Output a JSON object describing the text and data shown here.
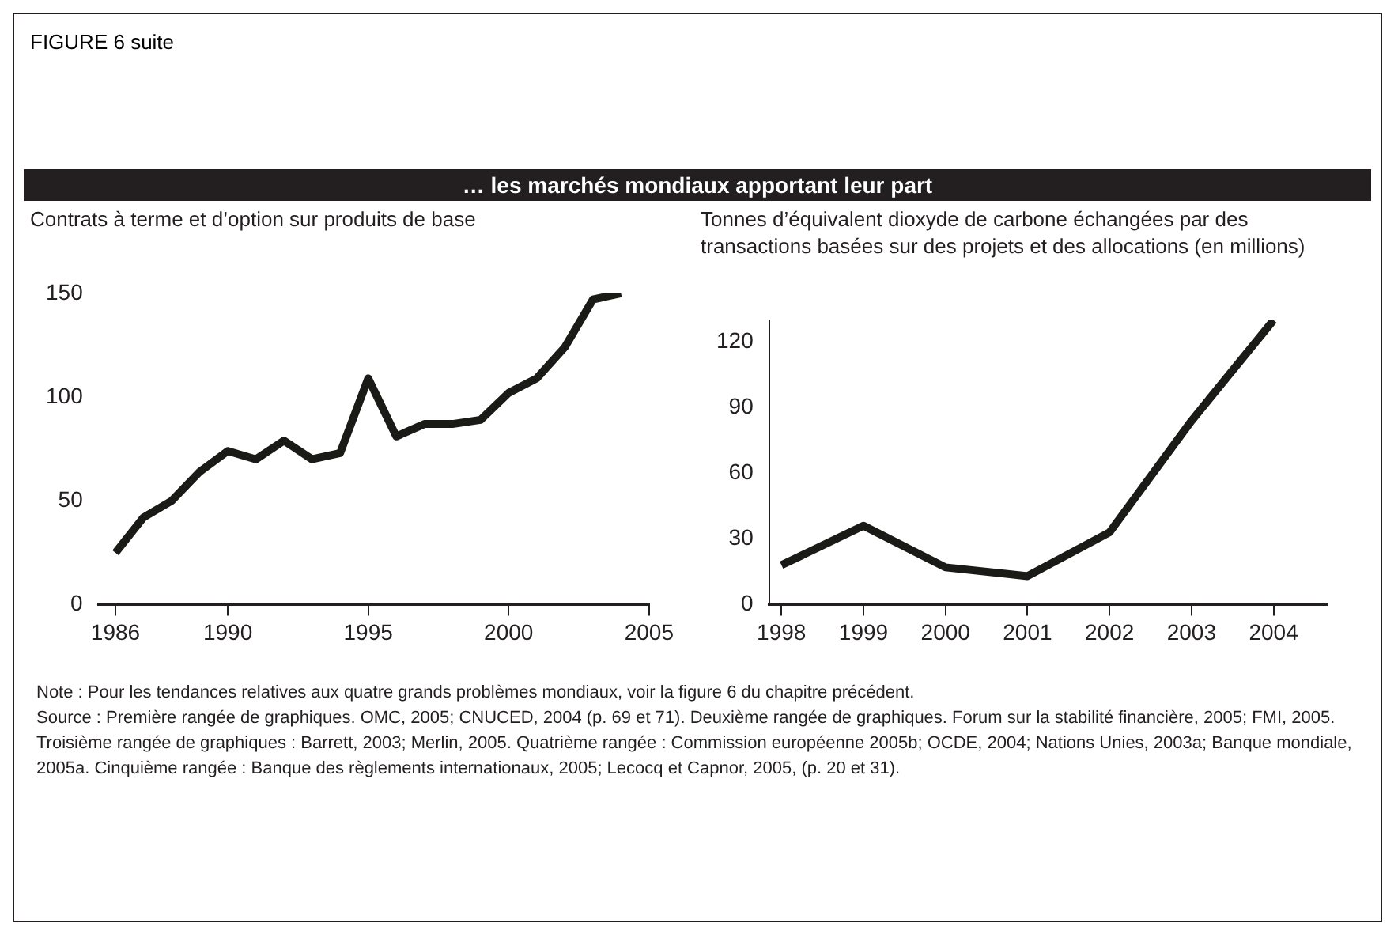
{
  "chart_data": [
    {
      "type": "other",
      "title": "FIGURE 6 suite",
      "subtitle": "… les marchés mondiaux apportant leur part"
    },
    {
      "type": "line",
      "title": "Contrats à terme et d’option sur produits de base",
      "x": [
        1986,
        1987,
        1988,
        1989,
        1990,
        1991,
        1992,
        1993,
        1994,
        1995,
        1996,
        1997,
        1998,
        1999,
        2000,
        2001,
        2002,
        2003,
        2004
      ],
      "series": [
        {
          "color": "#1a1a17",
          "values": [
            25,
            42,
            50,
            64,
            74,
            70,
            79,
            70,
            73,
            109,
            81,
            87,
            87,
            89,
            102,
            109,
            124,
            147,
            150
          ]
        }
      ],
      "xlim": [
        1985.4,
        2005
      ],
      "xticks": [
        1986,
        1990,
        1995,
        2000,
        2005
      ],
      "ylim": [
        0,
        150
      ],
      "yticks": [
        0,
        50,
        100,
        150
      ],
      "grid": false,
      "legend": false,
      "marker": "none",
      "line_style": "solid"
    },
    {
      "type": "line",
      "title": "Tonnes d’équivalent dioxyde de carbone échangées par des transactions basées sur des projets et des allocations (en millions)",
      "x": [
        1998,
        1999,
        2000,
        2001,
        2002,
        2003,
        2004
      ],
      "series": [
        {
          "color": "#1a1a17",
          "values": [
            18,
            36,
            17,
            13,
            33,
            84,
            130
          ]
        }
      ],
      "xlim": [
        1997.85,
        2004.65
      ],
      "xticks": [
        1998,
        1999,
        2000,
        2001,
        2002,
        2003,
        2004
      ],
      "ylim": [
        0,
        130
      ],
      "yticks": [
        0,
        30,
        60,
        90,
        120
      ],
      "grid": false,
      "legend": false,
      "marker": "none",
      "line_style": "solid"
    },
    {
      "type": "other",
      "annotations": [
        "Note : Pour les tendances relatives aux quatre grands problèmes mondiaux, voir la figure 6 du chapitre précédent.",
        "Source : Première rangée de graphiques. OMC, 2005; CNUCED, 2004 (p. 69 et 71). Deuxième rangée de graphiques. Forum sur la stabilité financière, 2005; FMI, 2005. Troisième rangée de graphiques : Barrett, 2003; Merlin, 2005. Quatrième rangée : Commission européenne 2005b; OCDE, 2004; Nations Unies, 2003a; Banque mondiale, 2005a. Cinquième rangée : Banque des règlements internationaux, 2005; Lecocq et Capnor, 2005, (p. 20 et 31)."
      ]
    }
  ]
}
